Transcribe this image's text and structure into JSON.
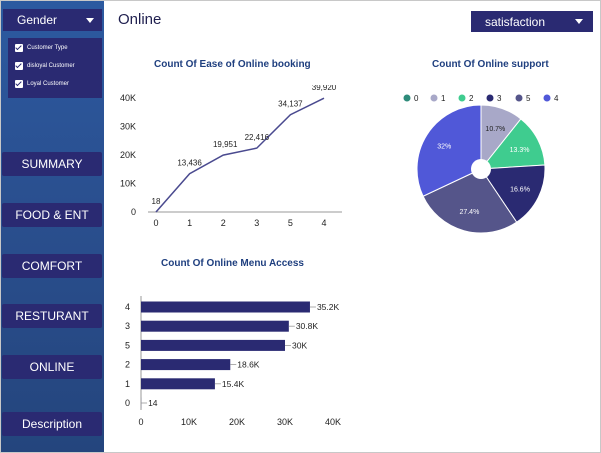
{
  "page_title": "Online",
  "sidebar": {
    "gender_dropdown": "Gender",
    "filters": [
      "Customer Type",
      "disloyal Customer",
      "Loyal Customer"
    ],
    "nav": [
      "SUMMARY",
      "FOOD & ENT",
      "COMFORT",
      "RESTURANT",
      "ONLINE",
      "Description"
    ]
  },
  "satisfaction_dropdown": "satisfaction",
  "colors": {
    "sidebar": "#2a5298",
    "button": "#2a2a72",
    "line": "#4a4a8f",
    "bar": "#2a2a72"
  },
  "chart_data": [
    {
      "type": "line",
      "title": "Count Of Ease of Online booking",
      "categories": [
        "0",
        "1",
        "2",
        "3",
        "5",
        "4"
      ],
      "values": [
        18,
        13436,
        19951,
        22416,
        34137,
        39920
      ],
      "value_labels": [
        "18",
        "13,436",
        "19,951",
        "22,416",
        "34,137",
        "39,920"
      ],
      "yticks": [
        "0",
        "10K",
        "20K",
        "30K",
        "40K"
      ],
      "ylim": [
        0,
        40000
      ],
      "grid": false
    },
    {
      "type": "pie",
      "title": "Count Of Online support",
      "legend": [
        "0",
        "1",
        "2",
        "3",
        "5",
        "4"
      ],
      "legend_position": "top",
      "slices": [
        {
          "name": "0",
          "value": 0.0,
          "color": "#2e8b7a"
        },
        {
          "name": "1",
          "value": 10.7,
          "color": "#a8a8c8"
        },
        {
          "name": "2",
          "value": 13.3,
          "color": "#3fcc8f"
        },
        {
          "name": "3",
          "value": 16.6,
          "color": "#2a2a72"
        },
        {
          "name": "5",
          "value": 27.4,
          "color": "#55558a"
        },
        {
          "name": "4",
          "value": 32.0,
          "color": "#5058d8"
        }
      ],
      "slice_labels": [
        "10.7%",
        "13.3%",
        "16.6%",
        "27.4%",
        "32%"
      ]
    },
    {
      "type": "bar",
      "orientation": "horizontal",
      "title": "Count Of Online Menu Access",
      "categories": [
        "4",
        "3",
        "5",
        "2",
        "1",
        "0"
      ],
      "values": [
        35200,
        30800,
        30000,
        18600,
        15400,
        14
      ],
      "value_labels": [
        "35.2K",
        "30.8K",
        "30K",
        "18.6K",
        "15.4K",
        "14"
      ],
      "xticks": [
        "0",
        "10K",
        "20K",
        "30K",
        "40K"
      ],
      "xlim": [
        0,
        40000
      ]
    }
  ]
}
